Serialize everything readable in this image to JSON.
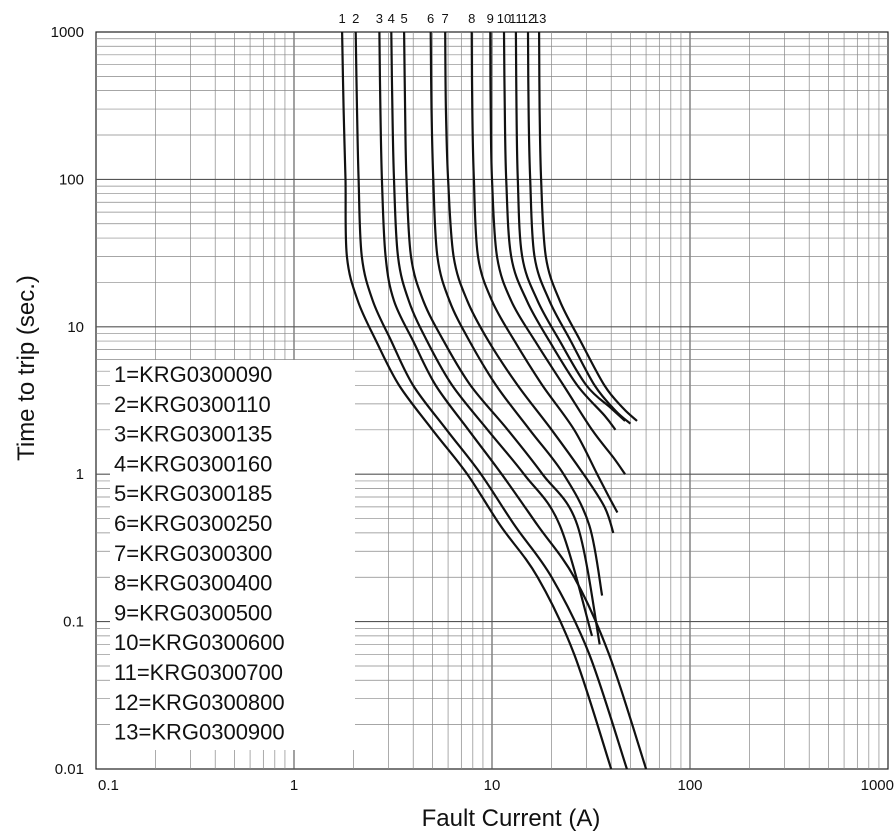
{
  "chart_data": {
    "type": "line",
    "xlabel": "Fault Current (A)",
    "ylabel": "Time to trip (sec.)",
    "x_scale": "log",
    "y_scale": "log",
    "xlim": [
      0.1,
      1000
    ],
    "ylim": [
      0.01,
      1000
    ],
    "x_ticks": [
      "0.1",
      "1",
      "10",
      "100",
      "1000"
    ],
    "y_ticks": [
      "0.01",
      "0.1",
      "1",
      "10",
      "100",
      "1000"
    ],
    "grid": true,
    "curve_labels": [
      "1",
      "2",
      "3",
      "4",
      "5",
      "6",
      "7",
      "8",
      "9",
      "10",
      "11",
      "12",
      "13"
    ],
    "legend": [
      "1=KRG0300090",
      "2=KRG0300110",
      "3=KRG0300135",
      "4=KRG0300160",
      "5=KRG0300185",
      "6=KRG0300250",
      "7=KRG0300300",
      "8=KRG0300400",
      "9=KRG0300500",
      "10=KRG0300600",
      "11=KRG0300700",
      "12=KRG0300800",
      "13=KRG0300900"
    ],
    "series": [
      {
        "name": "1",
        "points": [
          [
            1.75,
            1000
          ],
          [
            1.78,
            300
          ],
          [
            1.82,
            100
          ],
          [
            1.85,
            30
          ],
          [
            2.1,
            15
          ],
          [
            2.6,
            8
          ],
          [
            3.4,
            4
          ],
          [
            5.0,
            2
          ],
          [
            7.5,
            1
          ],
          [
            11,
            0.45
          ],
          [
            17,
            0.2
          ],
          [
            26,
            0.06
          ],
          [
            40,
            0.01
          ]
        ]
      },
      {
        "name": "2",
        "points": [
          [
            2.05,
            1000
          ],
          [
            2.08,
            300
          ],
          [
            2.12,
            100
          ],
          [
            2.2,
            30
          ],
          [
            2.5,
            15
          ],
          [
            3.1,
            8
          ],
          [
            4.0,
            4
          ],
          [
            5.9,
            2
          ],
          [
            8.8,
            1
          ],
          [
            13,
            0.45
          ],
          [
            20,
            0.2
          ],
          [
            31,
            0.06
          ],
          [
            48,
            0.01
          ]
        ]
      },
      {
        "name": "3",
        "points": [
          [
            2.7,
            1000
          ],
          [
            2.73,
            300
          ],
          [
            2.78,
            100
          ],
          [
            2.9,
            30
          ],
          [
            3.2,
            15
          ],
          [
            4.0,
            8
          ],
          [
            5.2,
            4
          ],
          [
            7.6,
            2
          ],
          [
            11.2,
            1
          ],
          [
            17,
            0.45
          ],
          [
            26,
            0.2
          ],
          [
            39,
            0.06
          ],
          [
            60,
            0.01
          ]
        ]
      },
      {
        "name": "4",
        "points": [
          [
            3.1,
            1000
          ],
          [
            3.14,
            300
          ],
          [
            3.2,
            100
          ],
          [
            3.35,
            30
          ],
          [
            3.8,
            15
          ],
          [
            4.7,
            8
          ],
          [
            6.3,
            4
          ],
          [
            9.5,
            2
          ],
          [
            14.5,
            1
          ],
          [
            22,
            0.45
          ],
          [
            32,
            0.08
          ]
        ]
      },
      {
        "name": "5",
        "points": [
          [
            3.6,
            1000
          ],
          [
            3.64,
            300
          ],
          [
            3.7,
            100
          ],
          [
            3.9,
            30
          ],
          [
            4.5,
            15
          ],
          [
            5.7,
            8
          ],
          [
            7.8,
            4
          ],
          [
            12,
            2
          ],
          [
            18,
            1
          ],
          [
            27,
            0.45
          ],
          [
            35,
            0.07
          ]
        ]
      },
      {
        "name": "6",
        "points": [
          [
            4.9,
            1000
          ],
          [
            4.95,
            300
          ],
          [
            5.05,
            100
          ],
          [
            5.3,
            30
          ],
          [
            6.1,
            15
          ],
          [
            7.7,
            8
          ],
          [
            10.5,
            4
          ],
          [
            15.5,
            2
          ],
          [
            23,
            1
          ],
          [
            31,
            0.45
          ],
          [
            36,
            0.15
          ]
        ]
      },
      {
        "name": "7",
        "points": [
          [
            5.8,
            1000
          ],
          [
            5.85,
            300
          ],
          [
            6.0,
            100
          ],
          [
            6.4,
            30
          ],
          [
            7.5,
            15
          ],
          [
            9.6,
            8
          ],
          [
            13.5,
            4
          ],
          [
            20,
            2
          ],
          [
            29,
            1
          ],
          [
            37,
            0.6
          ],
          [
            41,
            0.4
          ]
        ]
      },
      {
        "name": "8",
        "points": [
          [
            7.9,
            1000
          ],
          [
            7.95,
            300
          ],
          [
            8.1,
            100
          ],
          [
            8.5,
            30
          ],
          [
            10,
            15
          ],
          [
            13,
            8
          ],
          [
            18,
            4
          ],
          [
            26,
            2
          ],
          [
            34,
            1
          ],
          [
            39,
            0.7
          ],
          [
            43,
            0.55
          ]
        ]
      },
      {
        "name": "9",
        "points": [
          [
            9.8,
            1000
          ],
          [
            9.85,
            300
          ],
          [
            10.0,
            100
          ],
          [
            10.6,
            30
          ],
          [
            12.5,
            15
          ],
          [
            16.5,
            8
          ],
          [
            23,
            4
          ],
          [
            32,
            2
          ],
          [
            41,
            1.3
          ],
          [
            47,
            1.0
          ]
        ]
      },
      {
        "name": "10",
        "points": [
          [
            11.5,
            1000
          ],
          [
            11.6,
            300
          ],
          [
            11.8,
            100
          ],
          [
            12.5,
            30
          ],
          [
            15,
            15
          ],
          [
            19.5,
            8
          ],
          [
            27,
            4
          ],
          [
            37,
            2.5
          ],
          [
            42,
            2.0
          ]
        ]
      },
      {
        "name": "11",
        "points": [
          [
            13.2,
            1000
          ],
          [
            13.3,
            300
          ],
          [
            13.5,
            100
          ],
          [
            14.2,
            30
          ],
          [
            17,
            15
          ],
          [
            22,
            8
          ],
          [
            30,
            4
          ],
          [
            40,
            2.8
          ],
          [
            47,
            2.3
          ]
        ]
      },
      {
        "name": "12",
        "points": [
          [
            15.2,
            1000
          ],
          [
            15.3,
            300
          ],
          [
            15.6,
            100
          ],
          [
            16.4,
            30
          ],
          [
            19.5,
            15
          ],
          [
            25,
            8
          ],
          [
            33,
            4
          ],
          [
            42,
            2.7
          ],
          [
            50,
            2.2
          ]
        ]
      },
      {
        "name": "13",
        "points": [
          [
            17.3,
            1000
          ],
          [
            17.4,
            300
          ],
          [
            17.7,
            100
          ],
          [
            18.7,
            30
          ],
          [
            22,
            15
          ],
          [
            28,
            8
          ],
          [
            37,
            4
          ],
          [
            46,
            2.8
          ],
          [
            54,
            2.3
          ]
        ]
      }
    ]
  }
}
